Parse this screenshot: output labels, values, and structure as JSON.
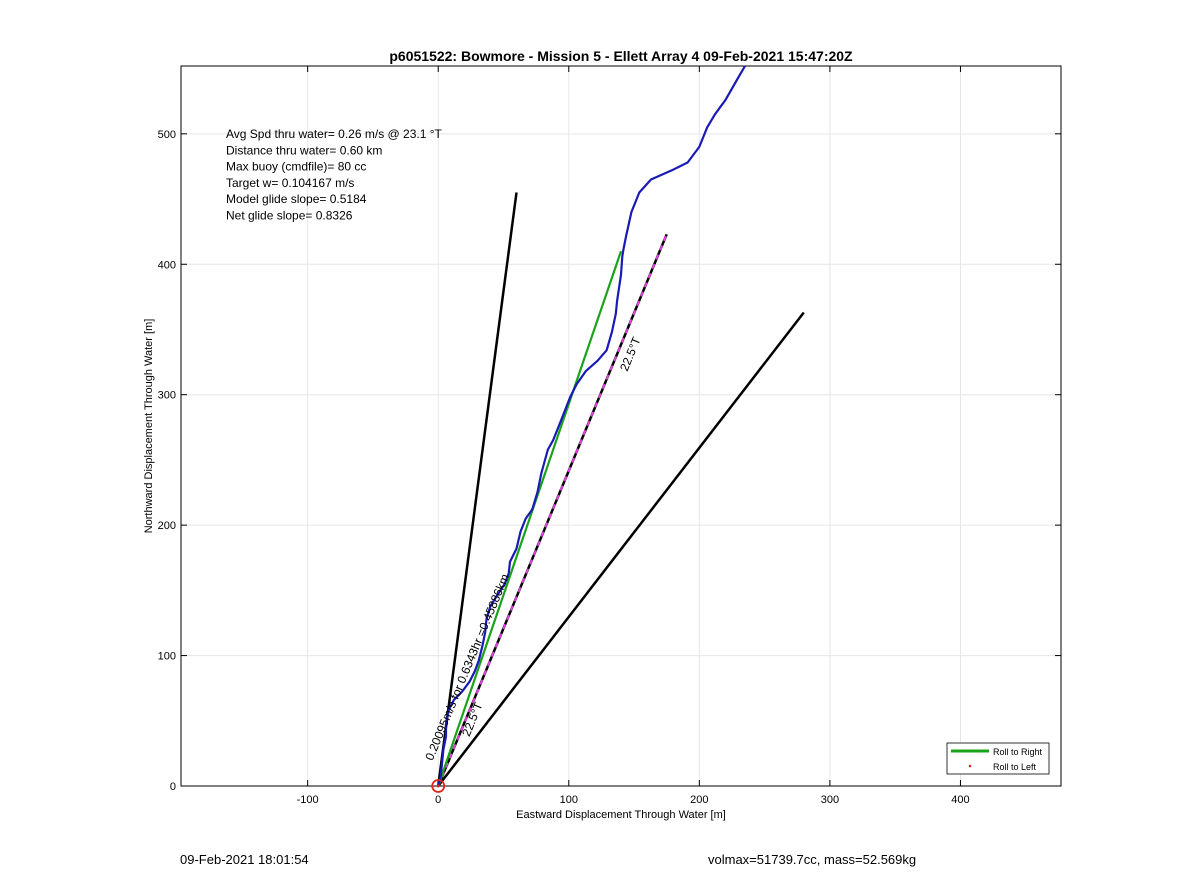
{
  "chart_data": {
    "type": "line",
    "title": "p6051522: Bowmore - Mission 5 - Ellett Array 4 09-Feb-2021 15:47:20Z",
    "xlabel": "Eastward Displacement Through Water [m]",
    "ylabel": "Northward Displacement Through Water [m]",
    "xlim": [
      -197,
      477
    ],
    "ylim": [
      0,
      552
    ],
    "xticks": [
      -100,
      0,
      100,
      200,
      300,
      400
    ],
    "yticks": [
      0,
      100,
      200,
      300,
      400,
      500
    ],
    "grid": true,
    "legend_position": "bottom-right",
    "info_lines": [
      "Avg Spd thru water=  0.26 m/s @  23.1 °T",
      "Distance thru water=  0.60 km",
      "Max buoy (cmdfile)= 80 cc",
      "Target w= 0.104167 m/s",
      "Model glide slope= 0.5184",
      "Net glide slope= 0.8326"
    ],
    "series": [
      {
        "name": "Roll to Right",
        "color": "#1aa31a",
        "points": [
          [
            0,
            0
          ],
          [
            140,
            410
          ]
        ]
      },
      {
        "name": "Roll to Left",
        "color": "#e0251e",
        "points": [
          [
            0,
            0
          ]
        ]
      },
      {
        "color": "#1a1ab4",
        "points": [
          [
            0,
            0
          ],
          [
            2,
            8
          ],
          [
            3,
            18
          ],
          [
            4,
            28
          ],
          [
            6,
            38
          ],
          [
            6,
            48
          ],
          [
            8,
            58
          ],
          [
            12,
            66
          ],
          [
            18,
            72
          ],
          [
            24,
            80
          ],
          [
            28,
            88
          ],
          [
            31,
            96
          ],
          [
            34,
            108
          ],
          [
            36,
            118
          ],
          [
            37,
            128
          ],
          [
            40,
            138
          ],
          [
            45,
            146
          ],
          [
            51,
            155
          ],
          [
            54,
            163
          ],
          [
            55,
            172
          ],
          [
            60,
            182
          ],
          [
            63,
            195
          ],
          [
            67,
            205
          ],
          [
            72,
            212
          ],
          [
            76,
            225
          ],
          [
            79,
            240
          ],
          [
            84,
            258
          ],
          [
            88,
            265
          ],
          [
            94,
            280
          ],
          [
            101,
            298
          ],
          [
            106,
            308
          ],
          [
            113,
            318
          ],
          [
            122,
            326
          ],
          [
            129,
            334
          ],
          [
            133,
            348
          ],
          [
            136,
            362
          ],
          [
            137,
            372
          ],
          [
            140,
            392
          ],
          [
            141,
            406
          ],
          [
            142,
            412
          ],
          [
            144,
            422
          ],
          [
            148,
            440
          ],
          [
            154,
            455
          ],
          [
            163,
            465
          ],
          [
            179,
            472
          ],
          [
            191,
            478
          ],
          [
            200,
            490
          ],
          [
            206,
            505
          ],
          [
            212,
            515
          ],
          [
            220,
            526
          ],
          [
            228,
            540
          ],
          [
            235,
            552
          ]
        ]
      },
      {
        "color": "#000000",
        "points": [
          [
            0,
            0
          ],
          [
            60,
            455
          ]
        ]
      },
      {
        "color": "#000000",
        "points": [
          [
            0,
            0
          ],
          [
            280,
            363
          ]
        ]
      },
      {
        "color": "#000000",
        "dashed_color": "#e040e0",
        "points": [
          [
            0,
            0
          ],
          [
            175,
            423
          ]
        ]
      }
    ],
    "annotations": [
      {
        "text": "0.20095m/s for 0.6343hr =0.45886km",
        "x": 25,
        "y": 90,
        "rotation": -67.5
      },
      {
        "text": "22.5°T",
        "x": 29,
        "y": 50,
        "rotation": -67.5
      },
      {
        "text": "22.5°T",
        "x": 150,
        "y": 330,
        "rotation": -67.5
      }
    ]
  },
  "footer": {
    "left": "09-Feb-2021 18:01:54",
    "right": "volmax=51739.7cc, mass=52.569kg"
  }
}
